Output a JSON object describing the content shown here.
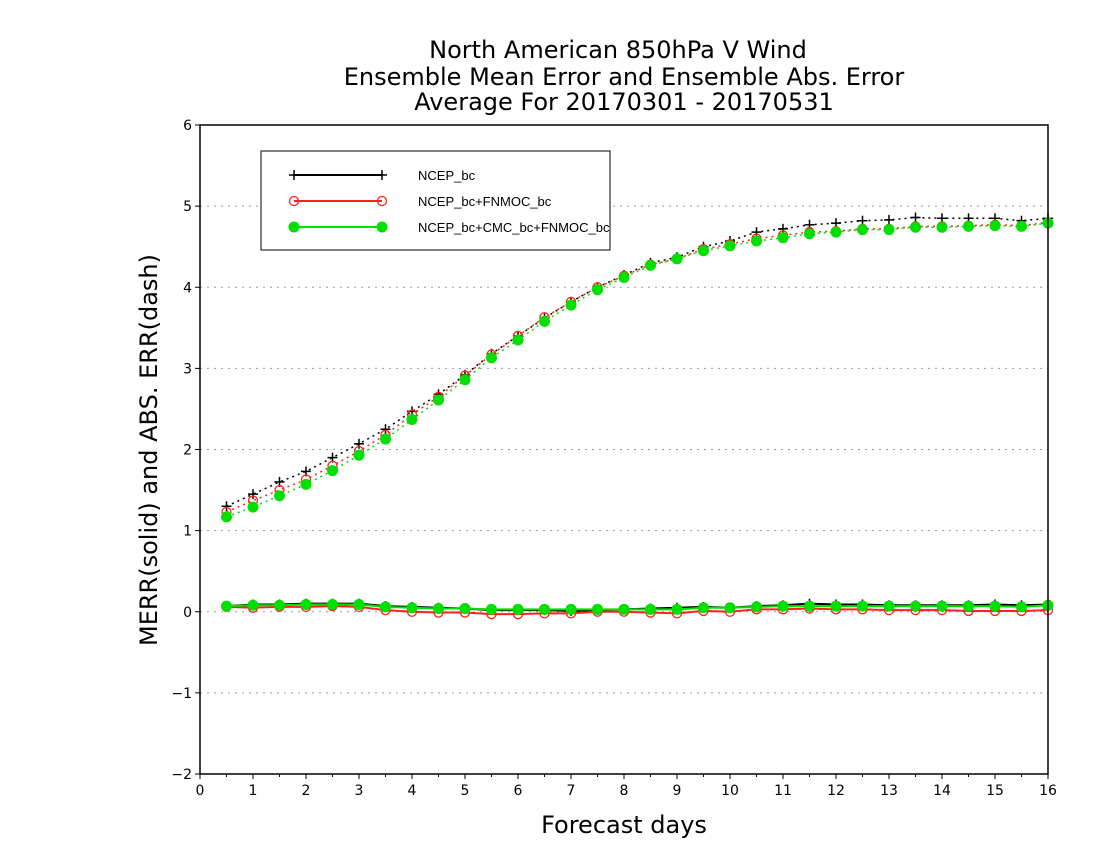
{
  "chart_data": {
    "type": "line",
    "title": {
      "line1": "North American 850hPa V Wind",
      "line2": "Ensemble Mean Error and Ensemble Abs. Error",
      "line3": "Average For 20170301 - 20170531"
    },
    "xlabel": "Forecast days",
    "ylabel": "MERR(solid) and ABS. ERR(dash)",
    "xlim": [
      0,
      16
    ],
    "ylim": [
      -2,
      6
    ],
    "x_ticks": [
      0,
      1,
      2,
      3,
      4,
      5,
      6,
      7,
      8,
      9,
      10,
      11,
      12,
      13,
      14,
      15,
      16
    ],
    "y_ticks": [
      -2,
      -1,
      0,
      1,
      2,
      3,
      4,
      5,
      6
    ],
    "grid": "horizontal dotted",
    "legend_position": "top-left",
    "x": [
      0.5,
      1,
      1.5,
      2,
      2.5,
      3,
      3.5,
      4,
      4.5,
      5,
      5.5,
      6,
      6.5,
      7,
      7.5,
      8,
      8.5,
      9,
      9.5,
      10,
      10.5,
      11,
      11.5,
      12,
      12.5,
      13,
      13.5,
      14,
      14.5,
      15,
      15.5,
      16
    ],
    "series": [
      {
        "name": "NCEP_bc",
        "color": "#000000",
        "marker": "plus",
        "merr": [
          0.07,
          0.09,
          0.09,
          0.1,
          0.1,
          0.1,
          0.07,
          0.06,
          0.05,
          0.04,
          0.02,
          0.02,
          0.02,
          0.01,
          0.02,
          0.03,
          0.04,
          0.05,
          0.06,
          0.05,
          0.07,
          0.08,
          0.1,
          0.09,
          0.09,
          0.08,
          0.08,
          0.08,
          0.08,
          0.09,
          0.08,
          0.09
        ],
        "abs_err": [
          1.3,
          1.45,
          1.6,
          1.73,
          1.9,
          2.07,
          2.25,
          2.47,
          2.68,
          2.92,
          3.18,
          3.4,
          3.62,
          3.82,
          4.0,
          4.15,
          4.3,
          4.37,
          4.5,
          4.57,
          4.68,
          4.72,
          4.77,
          4.79,
          4.82,
          4.83,
          4.86,
          4.85,
          4.85,
          4.85,
          4.82,
          4.85
        ]
      },
      {
        "name": "NCEP_bc+FNMOC_bc",
        "color": "#ff2020",
        "marker": "open-circle",
        "merr": [
          0.06,
          0.05,
          0.06,
          0.06,
          0.07,
          0.06,
          0.02,
          0.0,
          -0.01,
          -0.01,
          -0.03,
          -0.03,
          -0.02,
          -0.02,
          0.0,
          0.0,
          -0.01,
          -0.02,
          0.01,
          0.0,
          0.03,
          0.03,
          0.04,
          0.03,
          0.03,
          0.02,
          0.02,
          0.02,
          0.01,
          0.01,
          0.01,
          0.02
        ],
        "abs_err": [
          1.23,
          1.37,
          1.5,
          1.63,
          1.8,
          1.98,
          2.18,
          2.43,
          2.65,
          2.91,
          3.17,
          3.4,
          3.63,
          3.82,
          4.0,
          4.14,
          4.28,
          4.35,
          4.47,
          4.53,
          4.6,
          4.64,
          4.68,
          4.69,
          4.72,
          4.72,
          4.75,
          4.75,
          4.76,
          4.77,
          4.76,
          4.8
        ]
      },
      {
        "name": "NCEP_bc+CMC_bc+FNMOC_bc",
        "color": "#00e000",
        "marker": "filled-circle",
        "merr": [
          0.07,
          0.08,
          0.08,
          0.09,
          0.09,
          0.09,
          0.06,
          0.05,
          0.04,
          0.04,
          0.03,
          0.03,
          0.03,
          0.03,
          0.03,
          0.03,
          0.03,
          0.03,
          0.05,
          0.05,
          0.06,
          0.07,
          0.07,
          0.07,
          0.07,
          0.07,
          0.07,
          0.07,
          0.07,
          0.07,
          0.06,
          0.08
        ],
        "abs_err": [
          1.17,
          1.29,
          1.43,
          1.57,
          1.74,
          1.93,
          2.13,
          2.37,
          2.61,
          2.86,
          3.13,
          3.35,
          3.58,
          3.78,
          3.97,
          4.12,
          4.27,
          4.35,
          4.45,
          4.51,
          4.57,
          4.61,
          4.66,
          4.68,
          4.71,
          4.71,
          4.74,
          4.74,
          4.75,
          4.76,
          4.75,
          4.79
        ]
      }
    ]
  }
}
